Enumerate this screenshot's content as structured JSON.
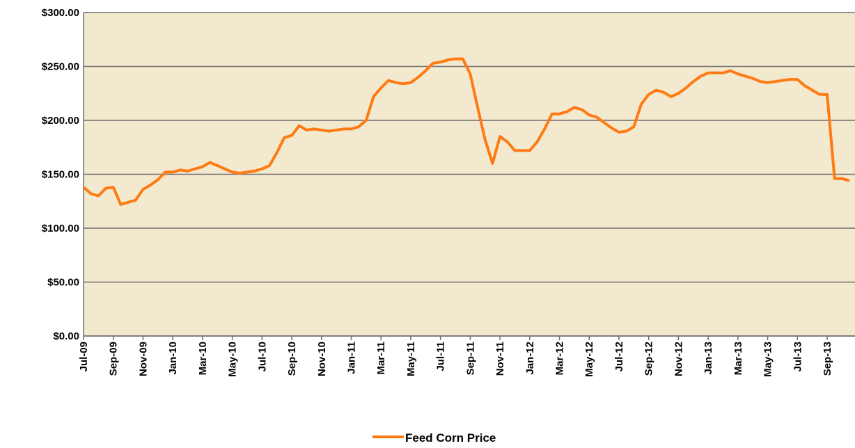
{
  "chart_data": {
    "type": "line",
    "categories": [
      "Jul-09",
      null,
      null,
      null,
      "Sep-09",
      null,
      null,
      null,
      "Nov-09",
      null,
      null,
      null,
      "Jan-10",
      null,
      null,
      null,
      "Mar-10",
      null,
      null,
      null,
      "May-10",
      null,
      null,
      null,
      "Jul-10",
      null,
      null,
      null,
      "Sep-10",
      null,
      null,
      null,
      "Nov-10",
      null,
      null,
      null,
      "Jan-11",
      null,
      null,
      null,
      "Mar-11",
      null,
      null,
      null,
      "May-11",
      null,
      null,
      null,
      "Jul-11",
      null,
      null,
      null,
      "Sep-11",
      null,
      null,
      null,
      "Nov-11",
      null,
      null,
      null,
      "Jan-12",
      null,
      null,
      null,
      "Mar-12",
      null,
      null,
      null,
      "May-12",
      null,
      null,
      null,
      "Jul-12",
      null,
      null,
      null,
      "Sep-12",
      null,
      null,
      null,
      "Nov-12",
      null,
      null,
      null,
      "Jan-13",
      null,
      null,
      null,
      "Mar-13",
      null,
      null,
      null,
      "May-13",
      null,
      null,
      null,
      "Jul-13",
      null,
      null,
      null,
      "Sep-13",
      null,
      null,
      null
    ],
    "series": [
      {
        "name": "Feed Corn Price",
        "color": "#ff7a12",
        "values": [
          138,
          132,
          130,
          137,
          138,
          122,
          124,
          126,
          136,
          140,
          145,
          152,
          152,
          154,
          153,
          155,
          157,
          161,
          158,
          155,
          152,
          151,
          152,
          153,
          155,
          158,
          170,
          184,
          186,
          195,
          191,
          192,
          191,
          190,
          191,
          192,
          192,
          194,
          200,
          222,
          230,
          237,
          235,
          234,
          235,
          240,
          246,
          253,
          254,
          256,
          257,
          257,
          243,
          212,
          182,
          160,
          185,
          180,
          172,
          172,
          172,
          180,
          192,
          206,
          206,
          208,
          212,
          210,
          205,
          203,
          198,
          193,
          189,
          190,
          194,
          215,
          224,
          228,
          226,
          222,
          225,
          230,
          236,
          241,
          244,
          244,
          244,
          246,
          243,
          241,
          239,
          236,
          235,
          236,
          237,
          238,
          238,
          232,
          228,
          224,
          224,
          146,
          146,
          144
        ]
      }
    ],
    "ylim": [
      0,
      300
    ],
    "yticks": [
      {
        "value": 0,
        "label": "$0.00"
      },
      {
        "value": 50,
        "label": "$50.00"
      },
      {
        "value": 100,
        "label": "$100.00"
      },
      {
        "value": 150,
        "label": "$150.00"
      },
      {
        "value": 200,
        "label": "$200.00"
      },
      {
        "value": 250,
        "label": "$250.00"
      },
      {
        "value": 300,
        "label": "$300.00"
      }
    ],
    "grid": true,
    "legend": "bottom"
  }
}
